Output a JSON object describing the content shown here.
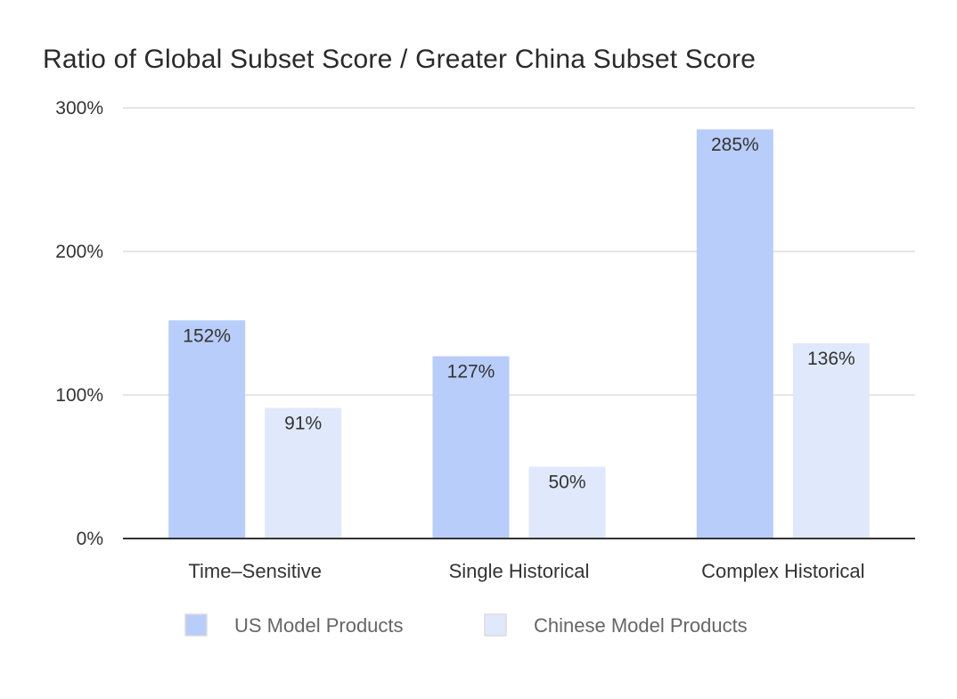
{
  "chart_data": {
    "type": "bar",
    "title": "Ratio of Global Subset Score / Greater China Subset Score",
    "xlabel": "",
    "ylabel": "",
    "categories": [
      "Time–Sensitive",
      "Single Historical",
      "Complex Historical"
    ],
    "series": [
      {
        "name": "US Model Products",
        "color": "#b9cdfa",
        "values": [
          152,
          127,
          285
        ],
        "labels": [
          "152%",
          "127%",
          "285%"
        ]
      },
      {
        "name": "Chinese Model Products",
        "color": "#e0e9fb",
        "values": [
          91,
          50,
          136
        ],
        "labels": [
          "91%",
          "50%",
          "136%"
        ]
      }
    ],
    "ylim": [
      0,
      300
    ],
    "yticks": [
      0,
      100,
      200,
      300
    ],
    "ytick_labels": [
      "0%",
      "100%",
      "200%",
      "300%"
    ],
    "grid": true,
    "legend_position": "bottom-center",
    "colors": {
      "gridline": "#dddddd",
      "axis": "#333333"
    }
  }
}
